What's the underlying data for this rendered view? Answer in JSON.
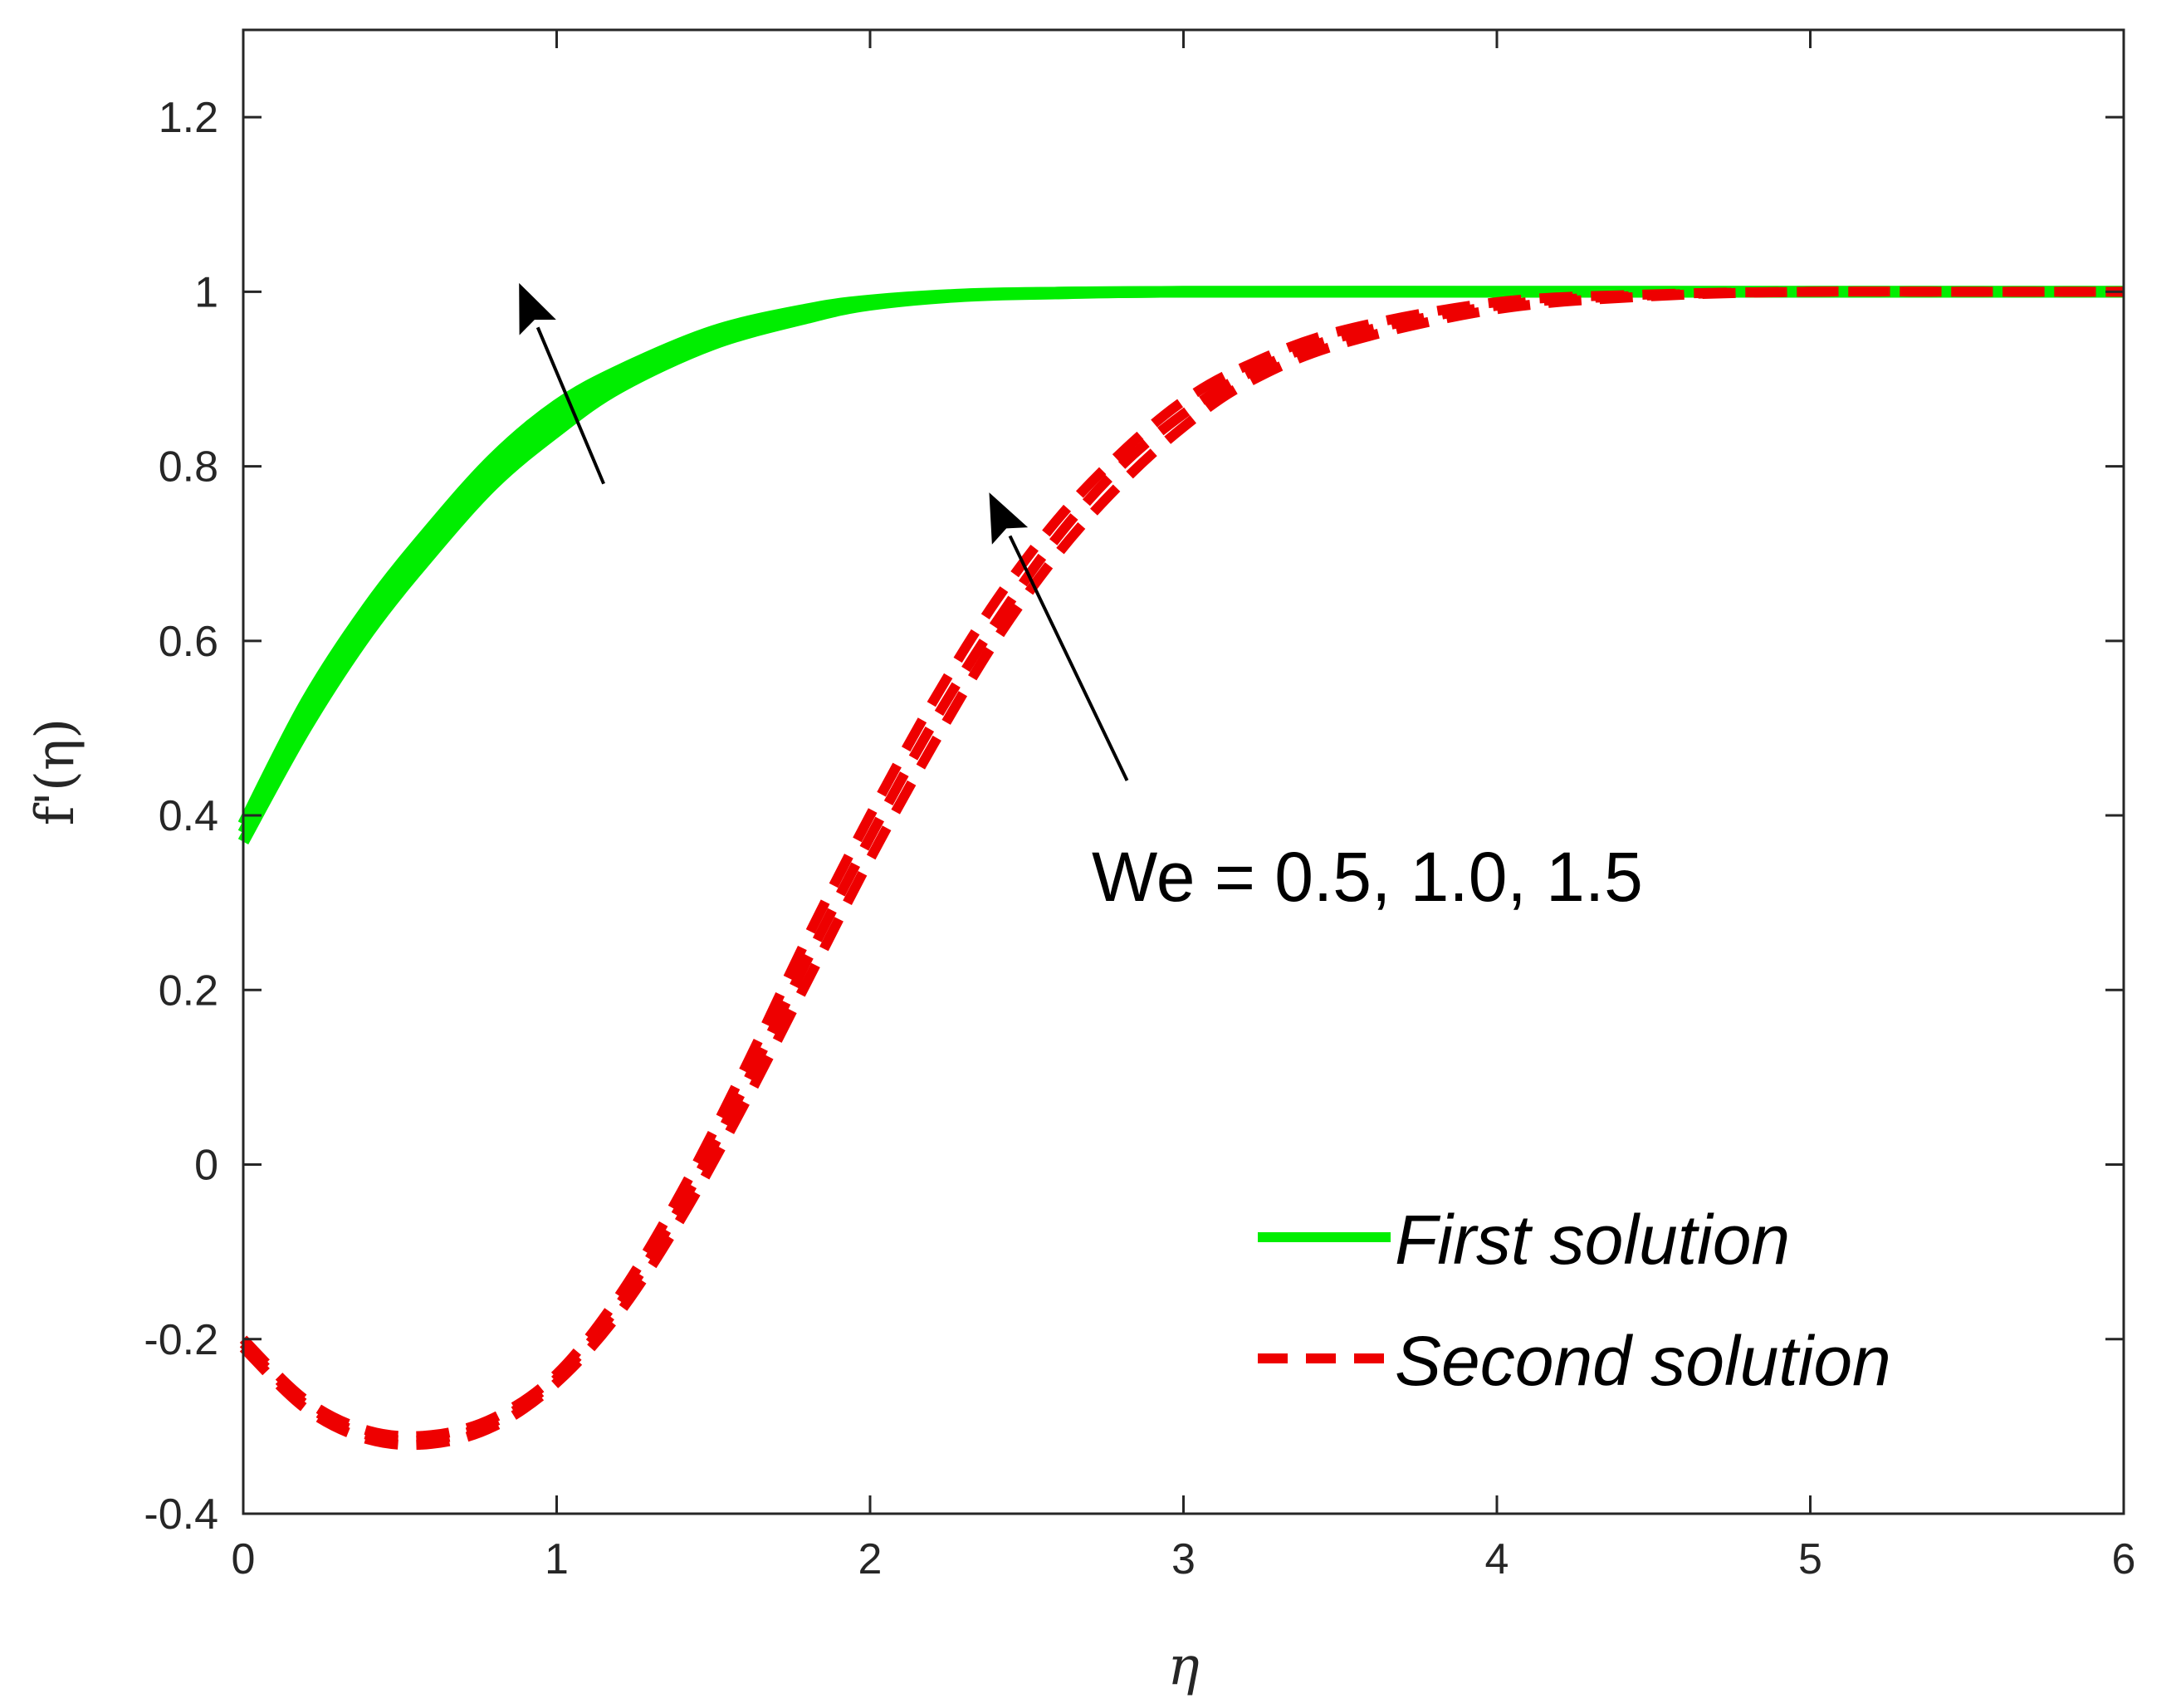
{
  "chart_data": {
    "type": "line",
    "xlabel": "η",
    "ylabel": "f'(η)",
    "xlim": [
      0,
      6
    ],
    "ylim": [
      -0.4,
      1.3
    ],
    "xticks": [
      "0",
      "1",
      "2",
      "3",
      "4",
      "5",
      "6"
    ],
    "yticks": [
      "-0.4",
      "-0.2",
      "0",
      "0.2",
      "0.4",
      "0.6",
      "0.8",
      "1",
      "1.2"
    ],
    "xtick_values": [
      0,
      1,
      2,
      3,
      4,
      5,
      6
    ],
    "ytick_values": [
      -0.4,
      -0.2,
      0,
      0.2,
      0.4,
      0.6,
      0.8,
      1,
      1.2
    ],
    "grid": false,
    "legend_position": "bottom-right",
    "annotation": "We = 0.5, 1.0, 1.5",
    "arrows": [
      {
        "from": [
          1.15,
          0.78
        ],
        "to": [
          0.88,
          1.01
        ]
      },
      {
        "from": [
          2.82,
          0.44
        ],
        "to": [
          2.38,
          0.77
        ]
      }
    ],
    "colors": {
      "first": "#00ee00",
      "second": "#ee0000",
      "axis": "#262626"
    },
    "series": [
      {
        "name": "First solution",
        "style": "solid",
        "x": [
          0,
          0.2,
          0.4,
          0.6,
          0.8,
          1.0,
          1.2,
          1.5,
          1.8,
          2.0,
          2.3,
          2.6,
          3.0,
          4.0,
          5.0,
          6.0
        ],
        "y": [
          0.37,
          0.5,
          0.61,
          0.7,
          0.78,
          0.84,
          0.89,
          0.94,
          0.97,
          0.985,
          0.995,
          0.998,
          1.0,
          1.0,
          1.0,
          1.0
        ]
      },
      {
        "name": "",
        "style": "solid",
        "x": [
          0,
          0.2,
          0.4,
          0.6,
          0.8,
          1.0,
          1.2,
          1.5,
          1.8,
          2.0,
          2.3,
          2.6,
          3.0,
          4.0,
          5.0,
          6.0
        ],
        "y": [
          0.38,
          0.515,
          0.625,
          0.715,
          0.795,
          0.855,
          0.9,
          0.95,
          0.975,
          0.988,
          0.996,
          0.999,
          1.0,
          1.0,
          1.0,
          1.0
        ]
      },
      {
        "name": "",
        "style": "solid",
        "x": [
          0,
          0.2,
          0.4,
          0.6,
          0.8,
          1.0,
          1.2,
          1.5,
          1.8,
          2.0,
          2.3,
          2.6,
          3.0,
          4.0,
          5.0,
          6.0
        ],
        "y": [
          0.39,
          0.53,
          0.64,
          0.73,
          0.81,
          0.87,
          0.91,
          0.955,
          0.98,
          0.99,
          0.997,
          0.999,
          1.0,
          1.0,
          1.0,
          1.0
        ]
      },
      {
        "name": "Second solution",
        "style": "dashed",
        "x": [
          0,
          0.2,
          0.4,
          0.6,
          0.8,
          1.0,
          1.2,
          1.4,
          1.6,
          1.8,
          2.0,
          2.2,
          2.4,
          2.6,
          2.8,
          3.0,
          3.2,
          3.5,
          4.0,
          4.5,
          5.0,
          5.5,
          6.0
        ],
        "y": [
          -0.21,
          -0.28,
          -0.315,
          -0.32,
          -0.3,
          -0.25,
          -0.17,
          -0.06,
          0.07,
          0.21,
          0.35,
          0.48,
          0.6,
          0.7,
          0.78,
          0.845,
          0.895,
          0.94,
          0.98,
          0.995,
          1.0,
          1.0,
          1.0
        ]
      },
      {
        "name": "",
        "style": "dashed",
        "x": [
          0,
          0.2,
          0.4,
          0.6,
          0.8,
          1.0,
          1.2,
          1.4,
          1.6,
          1.8,
          2.0,
          2.2,
          2.4,
          2.6,
          2.8,
          3.0,
          3.2,
          3.5,
          4.0,
          4.5,
          5.0,
          5.5,
          6.0
        ],
        "y": [
          -0.205,
          -0.275,
          -0.31,
          -0.315,
          -0.295,
          -0.245,
          -0.16,
          -0.045,
          0.09,
          0.235,
          0.375,
          0.505,
          0.62,
          0.72,
          0.8,
          0.86,
          0.905,
          0.948,
          0.984,
          0.996,
          1.0,
          1.0,
          1.0
        ]
      },
      {
        "name": "",
        "style": "dashed",
        "x": [
          0,
          0.2,
          0.4,
          0.6,
          0.8,
          1.0,
          1.2,
          1.4,
          1.6,
          1.8,
          2.0,
          2.2,
          2.4,
          2.6,
          2.8,
          3.0,
          3.2,
          3.5,
          4.0,
          4.5,
          5.0,
          5.5,
          6.0
        ],
        "y": [
          -0.2,
          -0.27,
          -0.305,
          -0.31,
          -0.29,
          -0.24,
          -0.15,
          -0.03,
          0.11,
          0.26,
          0.4,
          0.53,
          0.645,
          0.74,
          0.815,
          0.875,
          0.915,
          0.955,
          0.988,
          0.997,
          1.0,
          1.0,
          1.0
        ]
      }
    ]
  }
}
